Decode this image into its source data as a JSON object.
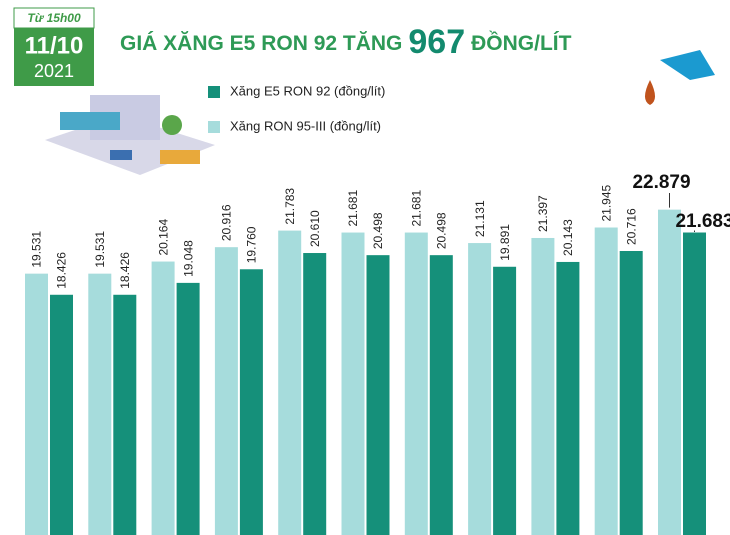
{
  "date_badge": {
    "time": "Từ 15h00",
    "day": "11/10",
    "year": "2021"
  },
  "chart_data": {
    "type": "bar",
    "title": "GIÁ XĂNG E5 RON 92 TĂNG",
    "title_highlight": "967",
    "title_end": "ĐỒNG/LÍT",
    "categories": [
      null,
      null,
      null,
      null,
      null,
      null,
      null,
      null,
      null,
      null,
      null
    ],
    "series": [
      {
        "name": "Xăng E5 RON 92 (đồng/lít)",
        "color": "#15907a",
        "values": [
          18426,
          18426,
          19048,
          19760,
          20610,
          20498,
          20498,
          19891,
          20143,
          20716,
          21683
        ],
        "value_labels": [
          "18.426",
          "18.426",
          "19.048",
          "19.760",
          "20.610",
          "20.498",
          "20.498",
          "19.891",
          "20.143",
          "20.716",
          "21.683"
        ]
      },
      {
        "name": "Xăng RON 95-III (đồng/lít)",
        "color": "#a6dcdc",
        "values": [
          19531,
          19531,
          20164,
          20916,
          21783,
          21681,
          21681,
          21131,
          21397,
          21945,
          22879
        ],
        "value_labels": [
          "19.531",
          "19.531",
          "20.164",
          "20.916",
          "21.783",
          "21.681",
          "21.681",
          "21.131",
          "21.397",
          "21.945",
          "22.879"
        ]
      }
    ]
  }
}
